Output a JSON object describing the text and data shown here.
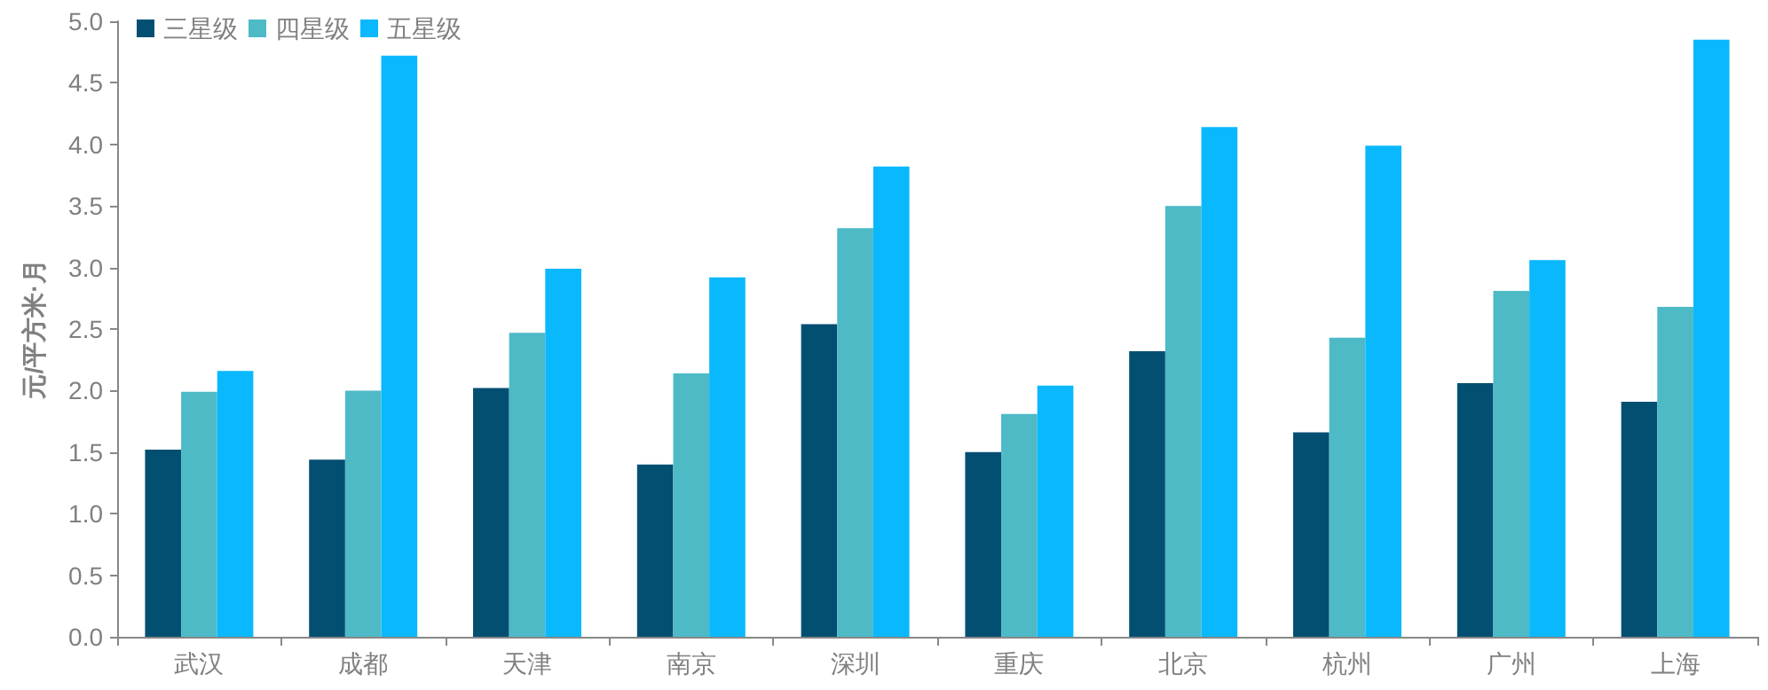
{
  "chart_data": {
    "type": "bar",
    "ylabel": "元/平方米·月",
    "categories": [
      "武汉",
      "成都",
      "天津",
      "南京",
      "深圳",
      "重庆",
      "北京",
      "杭州",
      "广州",
      "上海"
    ],
    "series": [
      {
        "name": "三星级",
        "color": "#034f72",
        "values": [
          1.52,
          1.44,
          2.02,
          1.4,
          2.54,
          1.5,
          2.32,
          1.66,
          2.06,
          1.91
        ]
      },
      {
        "name": "四星级",
        "color": "#4dbac6",
        "values": [
          1.99,
          2.0,
          2.47,
          2.14,
          3.32,
          1.81,
          3.5,
          2.43,
          2.81,
          2.68
        ]
      },
      {
        "name": "五星级",
        "color": "#0ab8fd",
        "values": [
          2.16,
          4.72,
          2.99,
          2.92,
          3.82,
          2.04,
          4.14,
          3.99,
          3.06,
          4.85
        ]
      }
    ],
    "ylim": [
      0,
      5
    ],
    "yticks": [
      {
        "value": 0,
        "label": "0.0"
      },
      {
        "value": 0.5,
        "label": "0.5"
      },
      {
        "value": 1,
        "label": "1.0"
      },
      {
        "value": 1.5,
        "label": "1.5"
      },
      {
        "value": 2,
        "label": "2.0"
      },
      {
        "value": 2.5,
        "label": "2.5"
      },
      {
        "value": 3,
        "label": "3.0"
      },
      {
        "value": 3.5,
        "label": "3.5"
      },
      {
        "value": 4,
        "label": "4.0"
      },
      {
        "value": 4.5,
        "label": "4.5"
      },
      {
        "value": 5,
        "label": "5.0"
      }
    ],
    "grid": false,
    "legend": "top left"
  }
}
